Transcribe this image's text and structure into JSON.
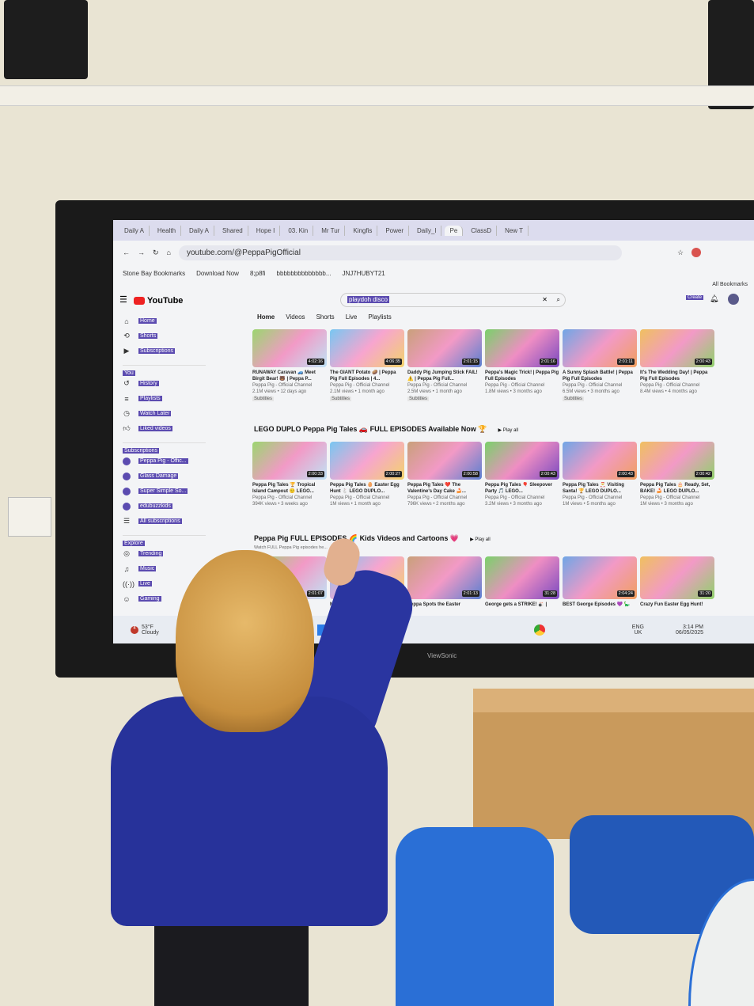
{
  "browser": {
    "tabs": [
      "Daily A",
      "Health",
      "Daily A",
      "Shared",
      "Hope I",
      "03. Kin",
      "Mr Tur",
      "Kingfis",
      "Power",
      "Daily_I",
      "Pe",
      "ClassD",
      "New T"
    ],
    "active_tab": 10,
    "url": "youtube.com/@PeppaPigOfficial",
    "bookmarks": [
      "Stone Bay Bookmarks",
      "Download Now",
      "8;p8fi",
      "bbbbbbbbbbbbbb...",
      "JNJ7HUBYT21"
    ],
    "all_bookmarks": "All Bookmarks"
  },
  "youtube": {
    "logo": "YouTube",
    "search_value": "playdoh disco",
    "create_label": "Create",
    "channel_tabs": [
      "Home",
      "Videos",
      "Shorts",
      "Live",
      "Playlists"
    ],
    "sidebar": {
      "main": [
        "Home",
        "Shorts",
        "Subscriptions"
      ],
      "you_label": "You",
      "you": [
        "History",
        "Playlists",
        "Watch Later",
        "Liked videos"
      ],
      "subs_label": "Subscriptions",
      "subs": [
        "Peppa Pig - Offic...",
        "Glass Damage",
        "Super Simple So...",
        "edubuzzkids",
        "All subscriptions"
      ],
      "explore_label": "Explore",
      "explore": [
        "Trending",
        "Music",
        "Live",
        "Gaming"
      ]
    },
    "row1": [
      {
        "title": "RUNAWAY Caravan 🚙 Meet Birgit Bear! 🐻 | Peppa P...",
        "channel": "Peppa Pig - Official Channel",
        "meta": "2.1M views • 12 days ago",
        "duration": "4:02:16",
        "badge": "Subtitles"
      },
      {
        "title": "The GIANT Potato 🥔 | Peppa Pig Full Episodes | 4...",
        "channel": "Peppa Pig - Official Channel",
        "meta": "2.1M views • 1 month ago",
        "duration": "4:06:35",
        "badge": "Subtitles"
      },
      {
        "title": "Daddy Pig Jumping Stick FAIL! ⚠️ | Peppa Pig Full...",
        "channel": "Peppa Pig - Official Channel",
        "meta": "2.5M views • 1 month ago",
        "duration": "2:01:15",
        "badge": "Subtitles"
      },
      {
        "title": "Peppa's Magic Trick! | Peppa Pig Full Episodes",
        "channel": "Peppa Pig - Official Channel",
        "meta": "1.8M views • 3 months ago",
        "duration": "2:01:16",
        "badge": ""
      },
      {
        "title": "A Sunny Splash Battle! | Peppa Pig Full Episodes",
        "channel": "Peppa Pig - Official Channel",
        "meta": "6.5M views • 3 months ago",
        "duration": "2:01:11",
        "badge": "Subtitles"
      },
      {
        "title": "It's The Wedding Day! | Peppa Pig Full Episodes",
        "channel": "Peppa Pig - Official Channel",
        "meta": "8.4M views • 4 months ago",
        "duration": "2:00:43",
        "badge": ""
      }
    ],
    "section2": {
      "title": "LEGO DUPLO Peppa Pig Tales 🚗 FULL EPISODES Available Now 🏆",
      "play_all": "Play all"
    },
    "row2": [
      {
        "title": "Peppa Pig Tales 🏆 Tropical Island Campout 🙂 LEGO...",
        "channel": "Peppa Pig - Official Channel",
        "meta": "394K views • 3 weeks ago",
        "duration": "2:00:33"
      },
      {
        "title": "Peppa Pig Tales 🥚 Easter Egg Hunt 🐇 LEGO DUPLO...",
        "channel": "Peppa Pig - Official Channel",
        "meta": "1M views • 1 month ago",
        "duration": "2:00:27"
      },
      {
        "title": "Peppa Pig Tales ❤️ The Valentine's Day Cake 🍰...",
        "channel": "Peppa Pig - Official Channel",
        "meta": "796K views • 2 months ago",
        "duration": "2:00:58"
      },
      {
        "title": "Peppa Pig Tales 🎈 Sleepover Party 🎵 LEGO...",
        "channel": "Peppa Pig - Official Channel",
        "meta": "3.2M views • 3 months ago",
        "duration": "2:00:43"
      },
      {
        "title": "Peppa Pig Tales 🎅 Visiting Santa! 🏆 LEGO DUPLO...",
        "channel": "Peppa Pig - Official Channel",
        "meta": "1M views • 5 months ago",
        "duration": "2:00:43"
      },
      {
        "title": "Peppa Pig Tales 🎂 Ready, Set, BAKE! 🍰 LEGO DUPLO...",
        "channel": "Peppa Pig - Official Channel",
        "meta": "1M views • 3 months ago",
        "duration": "2:00:42"
      }
    ],
    "section3": {
      "title": "Peppa Pig FULL EPISODES 🌈 Kids Videos and Cartoons 💗",
      "subtitle": "Watch FULL Peppa Pig episodes he...",
      "play_all": "Play all"
    },
    "row3": [
      {
        "title": "",
        "duration": "2:01:07"
      },
      {
        "title": "Mummy...",
        "duration": "2:01:14"
      },
      {
        "title": "Peppa Spots the Easter",
        "duration": "2:01:13"
      },
      {
        "title": "George gets a STRIKE! 🎳 |",
        "duration": "31:28"
      },
      {
        "title": "BEST George Episodes 💜 🦕",
        "duration": "2:04:24"
      },
      {
        "title": "Crazy Fun Easter Egg Hunt!",
        "duration": "31:20"
      }
    ]
  },
  "taskbar": {
    "weather_temp": "53°F",
    "weather_desc": "Cloudy",
    "lang": "ENG",
    "region": "UK",
    "time": "3:14 PM",
    "date": "06/05/2025",
    "badge": "4"
  },
  "monitor_brand": "ViewSonic"
}
